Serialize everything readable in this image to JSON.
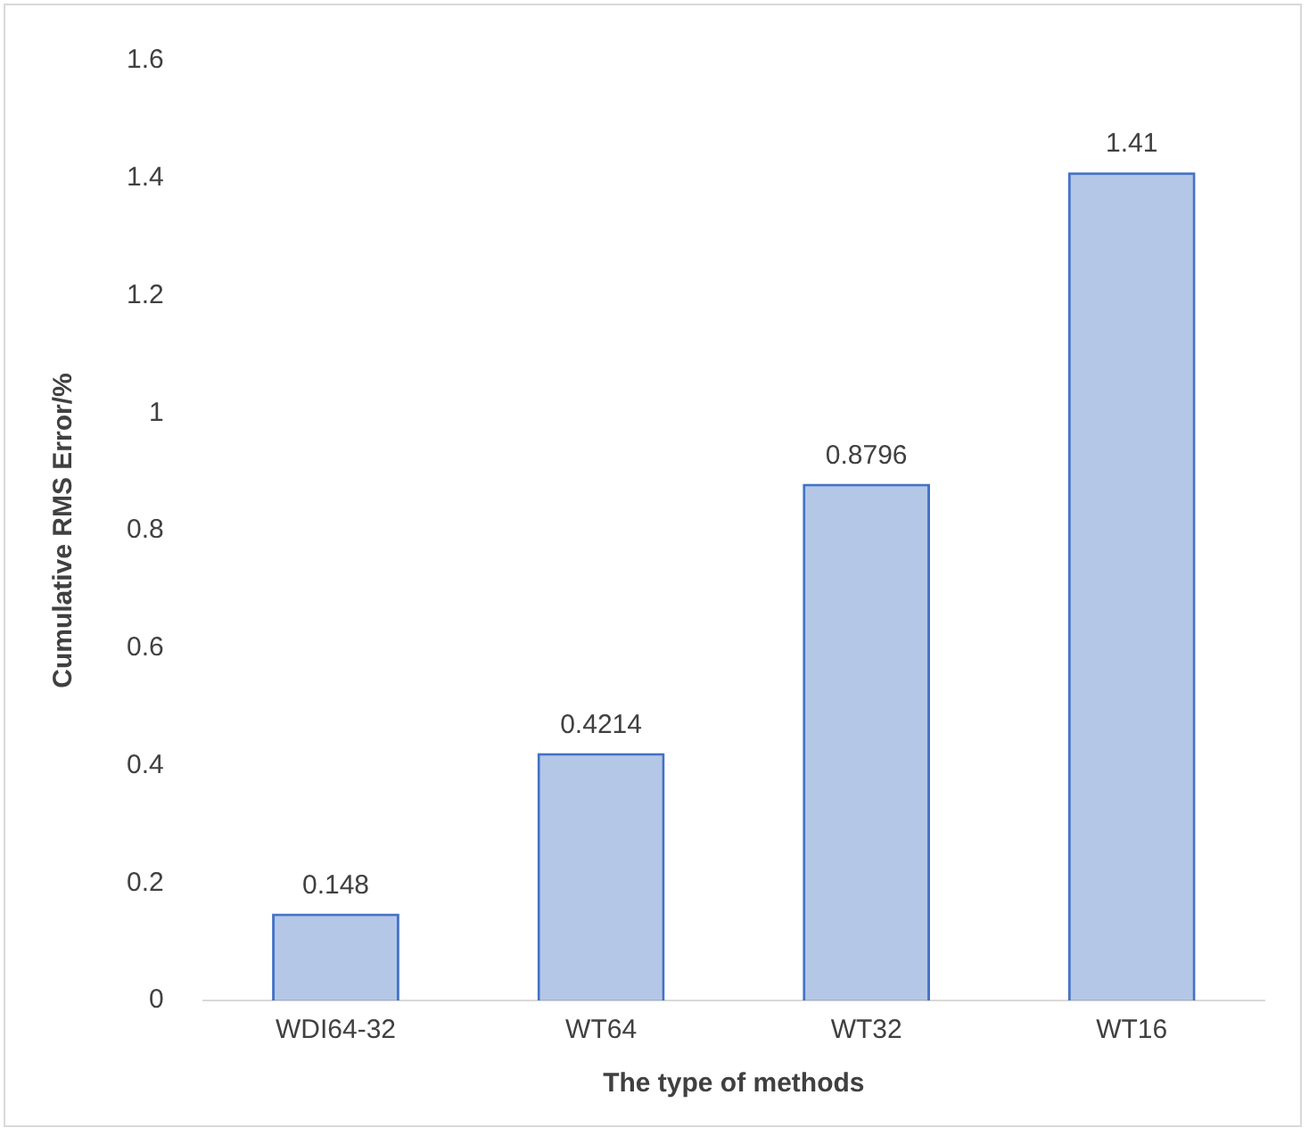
{
  "chart_data": {
    "type": "bar",
    "xlabel": "The type of methods",
    "ylabel": "Cumulative RMS Error/%",
    "categories": [
      "WDI64-32",
      "WT64",
      "WT32",
      "WT16"
    ],
    "values": [
      0.148,
      0.4214,
      0.8796,
      1.41
    ],
    "value_labels": [
      "0.148",
      "0.4214",
      "0.8796",
      "1.41"
    ],
    "color": "#4472c4",
    "ylim": [
      0,
      1.6
    ],
    "yticks": [
      0,
      0.2,
      0.4,
      0.6,
      0.8,
      1,
      1.2,
      1.4,
      1.6
    ],
    "grid": false,
    "legend": false
  }
}
